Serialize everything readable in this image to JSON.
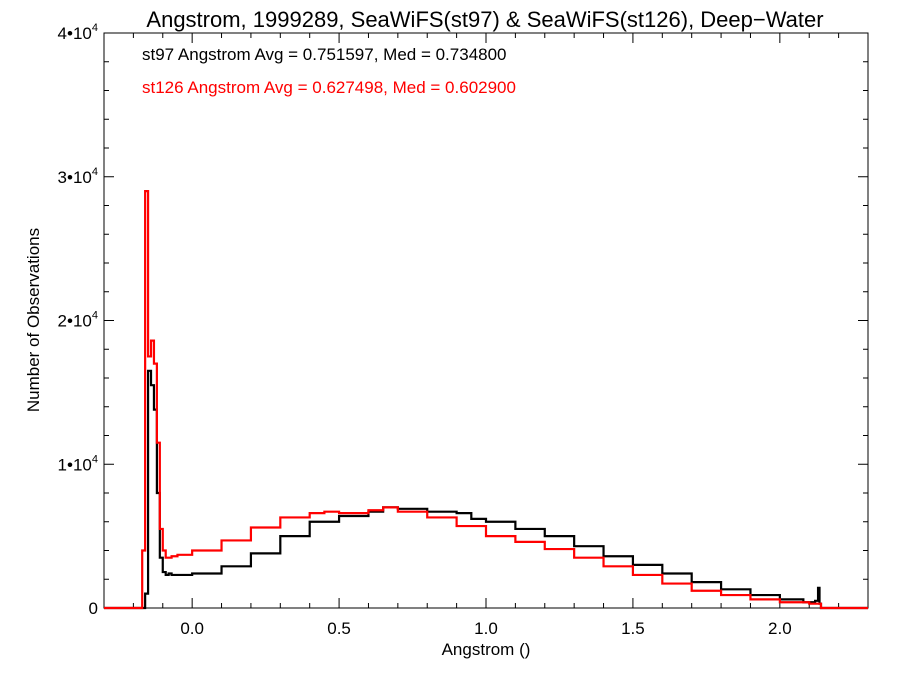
{
  "chart_data": {
    "type": "step-histogram",
    "title": "Angstrom, 1999289, SeaWiFS(st97) & SeaWiFS(st126), Deep−Water",
    "xlabel": "Angstrom ()",
    "ylabel": "Number of Observations",
    "xlim": [
      -0.3,
      2.3
    ],
    "ylim": [
      0,
      40000
    ],
    "x_ticks": [
      0.0,
      0.5,
      1.0,
      1.5,
      2.0
    ],
    "x_tick_labels": [
      "0.0",
      "0.5",
      "1.0",
      "1.5",
      "2.0"
    ],
    "y_ticks": [
      0,
      10000,
      20000,
      30000,
      40000
    ],
    "y_tick_labels": [
      {
        "mantissa": "0",
        "exponent": ""
      },
      {
        "mantissa": "1•10",
        "exponent": "4"
      },
      {
        "mantissa": "2•10",
        "exponent": "4"
      },
      {
        "mantissa": "3•10",
        "exponent": "4"
      },
      {
        "mantissa": "4•10",
        "exponent": "4"
      }
    ],
    "annotations": [
      {
        "text": "st97 Angstrom Avg = 0.751597, Med = 0.734800",
        "color": "#000000"
      },
      {
        "text": "st126 Angstrom Avg = 0.627498, Med = 0.602900",
        "color": "#ff0000"
      }
    ],
    "series": [
      {
        "color": "#000000",
        "x": [
          -0.3,
          -0.16,
          -0.15,
          -0.14,
          -0.13,
          -0.12,
          -0.11,
          -0.1,
          -0.09,
          -0.08,
          -0.07,
          -0.05,
          0.0,
          0.1,
          0.2,
          0.3,
          0.4,
          0.5,
          0.6,
          0.65,
          0.7,
          0.8,
          0.9,
          0.95,
          1.0,
          1.1,
          1.2,
          1.3,
          1.4,
          1.5,
          1.6,
          1.7,
          1.8,
          1.9,
          2.0,
          2.08,
          2.12,
          2.13,
          2.135,
          2.14,
          2.3
        ],
        "values": [
          0,
          1000,
          16500,
          15500,
          13800,
          8000,
          3500,
          2500,
          2300,
          2400,
          2300,
          2300,
          2400,
          2900,
          3800,
          5000,
          6000,
          6400,
          6700,
          7000,
          6900,
          6700,
          6600,
          6200,
          6000,
          5500,
          5000,
          4300,
          3600,
          3000,
          2400,
          1800,
          1300,
          900,
          600,
          400,
          500,
          1400,
          300,
          0,
          0
        ]
      },
      {
        "color": "#ff0000",
        "x": [
          -0.3,
          -0.17,
          -0.16,
          -0.15,
          -0.14,
          -0.13,
          -0.12,
          -0.11,
          -0.1,
          -0.09,
          -0.08,
          -0.07,
          -0.05,
          0.0,
          0.1,
          0.2,
          0.3,
          0.4,
          0.45,
          0.5,
          0.6,
          0.65,
          0.7,
          0.8,
          0.9,
          1.0,
          1.1,
          1.2,
          1.3,
          1.4,
          1.5,
          1.6,
          1.7,
          1.8,
          1.9,
          2.0,
          2.1,
          2.14,
          2.3
        ],
        "values": [
          0,
          4000,
          29000,
          17500,
          18600,
          17000,
          11500,
          5500,
          4000,
          3500,
          3500,
          3600,
          3700,
          4000,
          4700,
          5600,
          6300,
          6600,
          6700,
          6600,
          6800,
          7000,
          6700,
          6300,
          5700,
          5000,
          4600,
          4100,
          3500,
          2900,
          2300,
          1700,
          1200,
          900,
          600,
          400,
          300,
          0,
          0
        ]
      }
    ]
  }
}
